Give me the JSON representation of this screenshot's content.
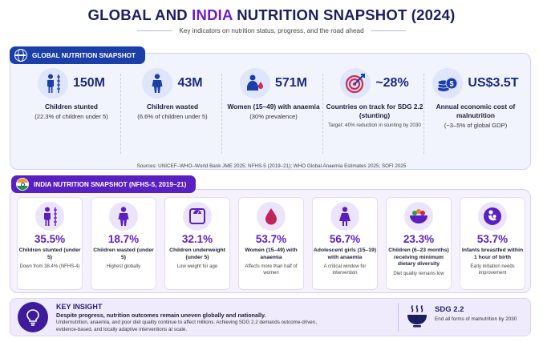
{
  "header": {
    "title_pre": "GLOBAL AND ",
    "title_hl": "INDIA",
    "title_post": " NUTRITION SNAPSHOT (2024)",
    "subtitle": "Key indicators on nutrition status, progress, and the road ahead"
  },
  "global": {
    "tab": "GLOBAL NUTRITION SNAPSHOT",
    "icon": "globe-icon",
    "cards": [
      {
        "icon": "child-height-icon",
        "value": "150M",
        "label": "Children stunted",
        "sub": "(22.3% of children under 5)",
        "note": ""
      },
      {
        "icon": "child-icon",
        "value": "43M",
        "label": "Children wasted",
        "sub": "(6.6% of children under 5)",
        "note": ""
      },
      {
        "icon": "woman-blood-drop-icon",
        "value": "571M",
        "label": "Women (15–49) with anaemia",
        "sub": "(30% prevalence)",
        "note": ""
      },
      {
        "icon": "target-icon",
        "value": "~28%",
        "label": "Countries on track for SDG 2.2 (stunting)",
        "sub": "",
        "note": "Target: 40% reduction in stunting by 2030"
      },
      {
        "icon": "coins-icon",
        "value": "US$3.5T",
        "label": "Annual economic cost of malnutrition",
        "sub": "(~3–5% of global GDP)",
        "note": ""
      }
    ],
    "sources": "Sources: UNICEF–WHO–World Bank JME 2025; NFHS-5 (2019–21); WHO Global Anaemia Estimates 2025; SOFI 2025"
  },
  "india": {
    "tab": "INDIA NUTRITION SNAPSHOT (NFHS-5, 2019–21)",
    "flag_colors": [
      "#f39a2b",
      "#ffffff",
      "#1f9a3a"
    ],
    "cards": [
      {
        "icon": "child-height-icon",
        "value": "35.5%",
        "label": "Children stunted (under 5)",
        "note": "Down from 38.4% (NFHS-4)"
      },
      {
        "icon": "child-icon",
        "value": "18.7%",
        "label": "Children wasted (under 5)",
        "note": "Highest globally"
      },
      {
        "icon": "weighing-scale-icon",
        "value": "32.1%",
        "label": "Children underweight (under 5)",
        "note": "Low weight for age"
      },
      {
        "icon": "blood-drop-icon",
        "value": "53.7%",
        "label": "Women (15–49) with anaemia",
        "note": "Affects more than half of women"
      },
      {
        "icon": "girl-icon",
        "value": "56.7%",
        "label": "Adolescent girls (15–19) with anaemia",
        "note": "A critical window for intervention"
      },
      {
        "icon": "food-bowl-icon",
        "value": "23.3%",
        "label": "Children (6–23 months) receiving minimum dietary diversity",
        "note": "Diet quality remains low"
      },
      {
        "icon": "breastfeeding-icon",
        "value": "53.7%",
        "label": "Infants breastfed within 1 hour of birth",
        "note": "Early initiation needs improvement"
      }
    ]
  },
  "insight": {
    "icon": "lightbulb-icon",
    "title": "KEY INSIGHT",
    "main": "Despite progress, nutrition outcomes remain uneven globally and nationally.",
    "body": "Undernutrition, anaemia, and poor diet quality continue to affect millions. Achieving SDG 2.2 demands outcome-driven, evidence-based, and locally adaptive interventions at scale.",
    "sdg_icon": "hot-bowl-icon",
    "sdg_title": "SDG 2.2",
    "sdg_text": "End all forms of malnutrition by 2030"
  },
  "colors": {
    "global_accent": "#1a3fa8",
    "india_accent": "#5a1fc0",
    "title_navy": "#1b1f5e",
    "title_highlight": "#6a1fd0"
  }
}
